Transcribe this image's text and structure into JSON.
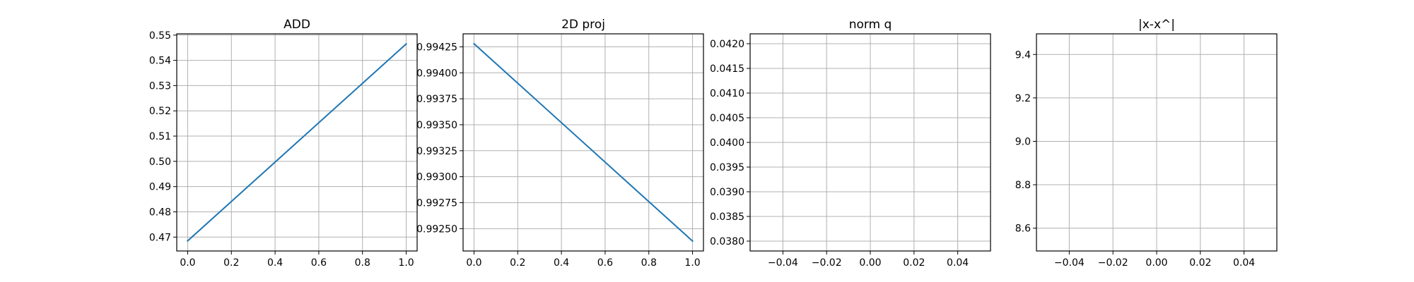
{
  "chart_data": [
    {
      "type": "line",
      "title": "ADD",
      "xlabel": "",
      "ylabel": "",
      "x": [
        0.0,
        1.0
      ],
      "series": [
        {
          "values": [
            0.4685,
            0.5465
          ],
          "color": "#1f77b4"
        }
      ],
      "xlim": [
        -0.05,
        1.05
      ],
      "ylim": [
        0.4645,
        0.5505
      ],
      "xticks": [
        0.0,
        0.2,
        0.4,
        0.6,
        0.8,
        1.0
      ],
      "xtick_labels": [
        "0.0",
        "0.2",
        "0.4",
        "0.6",
        "0.8",
        "1.0"
      ],
      "yticks": [
        0.47,
        0.48,
        0.49,
        0.5,
        0.51,
        0.52,
        0.53,
        0.54,
        0.55
      ],
      "ytick_labels": [
        "0.47",
        "0.48",
        "0.49",
        "0.50",
        "0.51",
        "0.52",
        "0.53",
        "0.54",
        "0.55"
      ],
      "grid": true
    },
    {
      "type": "line",
      "title": "2D proj",
      "xlabel": "",
      "ylabel": "",
      "x": [
        0.0,
        1.0
      ],
      "series": [
        {
          "values": [
            0.99428,
            0.99238
          ],
          "color": "#1f77b4"
        }
      ],
      "xlim": [
        -0.05,
        1.05
      ],
      "ylim": [
        0.992285,
        0.994375
      ],
      "xticks": [
        0.0,
        0.2,
        0.4,
        0.6,
        0.8,
        1.0
      ],
      "xtick_labels": [
        "0.0",
        "0.2",
        "0.4",
        "0.6",
        "0.8",
        "1.0"
      ],
      "yticks": [
        0.9925,
        0.99275,
        0.993,
        0.99325,
        0.9935,
        0.99375,
        0.994,
        0.99425
      ],
      "ytick_labels": [
        "0.99250",
        "0.99275",
        "0.99300",
        "0.99325",
        "0.99350",
        "0.99375",
        "0.99400",
        "0.99425"
      ],
      "grid": true
    },
    {
      "type": "line",
      "title": "norm q",
      "xlabel": "",
      "ylabel": "",
      "x": [],
      "series": [
        {
          "values": [],
          "color": "#1f77b4"
        }
      ],
      "xlim": [
        -0.055,
        0.055
      ],
      "ylim": [
        0.0378,
        0.0422
      ],
      "xticks": [
        -0.04,
        -0.02,
        0.0,
        0.02,
        0.04
      ],
      "xtick_labels": [
        "−0.04",
        "−0.02",
        "0.00",
        "0.02",
        "0.04"
      ],
      "yticks": [
        0.038,
        0.0385,
        0.039,
        0.0395,
        0.04,
        0.0405,
        0.041,
        0.0415,
        0.042
      ],
      "ytick_labels": [
        "0.0380",
        "0.0385",
        "0.0390",
        "0.0395",
        "0.0400",
        "0.0405",
        "0.0410",
        "0.0415",
        "0.0420"
      ],
      "grid": true
    },
    {
      "type": "line",
      "title": "|x-x^|",
      "xlabel": "",
      "ylabel": "",
      "x": [],
      "series": [
        {
          "values": [],
          "color": "#1f77b4"
        }
      ],
      "xlim": [
        -0.055,
        0.055
      ],
      "ylim": [
        8.495,
        9.495
      ],
      "xticks": [
        -0.04,
        -0.02,
        0.0,
        0.02,
        0.04
      ],
      "xtick_labels": [
        "−0.04",
        "−0.02",
        "0.00",
        "0.02",
        "0.04"
      ],
      "yticks": [
        8.6,
        8.8,
        9.0,
        9.2,
        9.4
      ],
      "ytick_labels": [
        "8.6",
        "8.8",
        "9.0",
        "9.2",
        "9.4"
      ],
      "grid": true
    }
  ]
}
